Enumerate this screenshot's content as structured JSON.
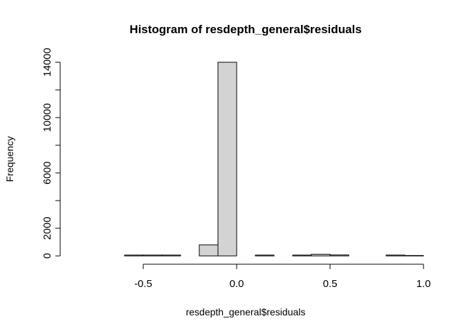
{
  "chart_data": {
    "type": "bar",
    "title": "Histogram of resdepth_general$residuals",
    "xlabel": "resdepth_general$residuals",
    "ylabel": "Frequency",
    "xlim": [
      -0.9,
      1.0
    ],
    "ylim": [
      0,
      14000
    ],
    "bin_width": 0.1,
    "bins": [
      {
        "start": -0.9,
        "end": -0.8,
        "count": 0
      },
      {
        "start": -0.8,
        "end": -0.7,
        "count": 0
      },
      {
        "start": -0.7,
        "end": -0.6,
        "count": 0
      },
      {
        "start": -0.6,
        "end": -0.5,
        "count": 60
      },
      {
        "start": -0.5,
        "end": -0.4,
        "count": 60
      },
      {
        "start": -0.4,
        "end": -0.3,
        "count": 60
      },
      {
        "start": -0.3,
        "end": -0.2,
        "count": 0
      },
      {
        "start": -0.2,
        "end": -0.1,
        "count": 800
      },
      {
        "start": -0.1,
        "end": 0.0,
        "count": 14000
      },
      {
        "start": 0.0,
        "end": 0.1,
        "count": 0
      },
      {
        "start": 0.1,
        "end": 0.2,
        "count": 60
      },
      {
        "start": 0.2,
        "end": 0.3,
        "count": 0
      },
      {
        "start": 0.3,
        "end": 0.4,
        "count": 60
      },
      {
        "start": 0.4,
        "end": 0.5,
        "count": 120
      },
      {
        "start": 0.5,
        "end": 0.6,
        "count": 70
      },
      {
        "start": 0.6,
        "end": 0.7,
        "count": 0
      },
      {
        "start": 0.7,
        "end": 0.8,
        "count": 0
      },
      {
        "start": 0.8,
        "end": 0.9,
        "count": 60
      },
      {
        "start": 0.9,
        "end": 1.0,
        "count": 30
      }
    ],
    "x_ticks": [
      -0.5,
      0.0,
      0.5,
      1.0
    ],
    "x_tick_labels": [
      "-0.5",
      "0.0",
      "0.5",
      "1.0"
    ],
    "y_ticks": [
      0,
      2000,
      4000,
      6000,
      8000,
      10000,
      12000,
      14000
    ],
    "y_tick_labels": [
      "0",
      "2000",
      "",
      "6000",
      "",
      "10000",
      "",
      "14000"
    ],
    "bar_fill": "#d3d3d3",
    "bar_stroke": "#000000",
    "grid": false,
    "legend": "none"
  }
}
